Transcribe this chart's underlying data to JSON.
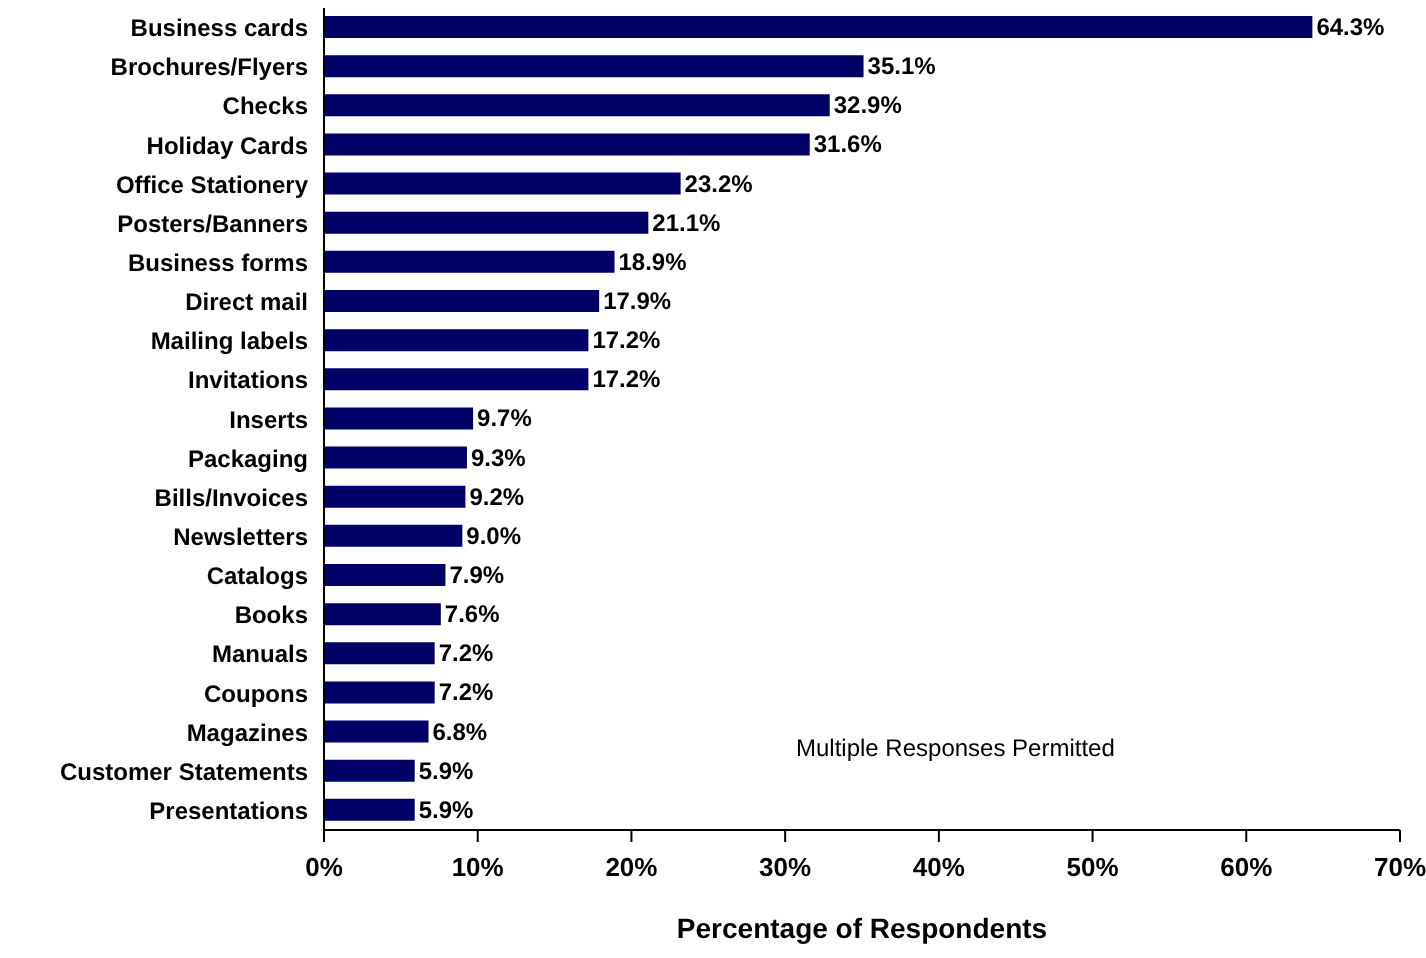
{
  "chart_data": {
    "type": "bar",
    "orientation": "horizontal",
    "xlabel": "Percentage of Respondents",
    "categories": [
      "Business cards",
      "Brochures/Flyers",
      "Checks",
      "Holiday Cards",
      "Office Stationery",
      "Posters/Banners",
      "Business forms",
      "Direct mail",
      "Mailing labels",
      "Invitations",
      "Inserts",
      "Packaging",
      "Bills/Invoices",
      "Newsletters",
      "Catalogs",
      "Books",
      "Manuals",
      "Coupons",
      "Magazines",
      "Customer Statements",
      "Presentations"
    ],
    "values": [
      64.3,
      35.1,
      32.9,
      31.6,
      23.2,
      21.1,
      18.9,
      17.9,
      17.2,
      17.2,
      9.7,
      9.3,
      9.2,
      9.0,
      7.9,
      7.6,
      7.2,
      7.2,
      6.8,
      5.9,
      5.9
    ],
    "value_labels": [
      "64.3%",
      "35.1%",
      "32.9%",
      "31.6%",
      "23.2%",
      "21.1%",
      "18.9%",
      "17.9%",
      "17.2%",
      "17.2%",
      "9.7%",
      "9.3%",
      "9.2%",
      "9.0%",
      "7.9%",
      "7.6%",
      "7.2%",
      "7.2%",
      "6.8%",
      "5.9%",
      "5.9%"
    ],
    "color": "#000066",
    "xlim": [
      0,
      70
    ],
    "xticks": [
      {
        "value": 0,
        "label": "0%"
      },
      {
        "value": 10,
        "label": "10%"
      },
      {
        "value": 20,
        "label": "20%"
      },
      {
        "value": 30,
        "label": "30%"
      },
      {
        "value": 40,
        "label": "40%"
      },
      {
        "value": 50,
        "label": "50%"
      },
      {
        "value": 60,
        "label": "60%"
      },
      {
        "value": 70,
        "label": "70%"
      }
    ],
    "grid": false,
    "legend": false,
    "annotations": [
      "Multiple Responses Permitted"
    ]
  }
}
